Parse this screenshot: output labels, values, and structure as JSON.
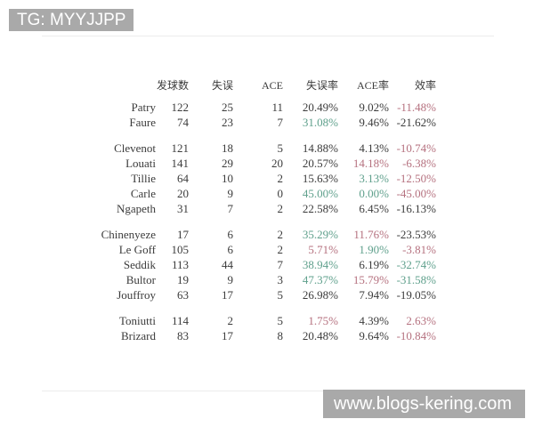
{
  "watermarks": {
    "top_left": "TG: MYYJJPP",
    "bottom_right": "www.blogs-kering.com"
  },
  "colors": {
    "green": "#5fa08c",
    "red": "#b5717f",
    "text": "#3b3b3b",
    "badge_bg": "#a9a9a9",
    "badge_text": "#ffffff",
    "card_border": "#ececec"
  },
  "table": {
    "columns": [
      "发球数",
      "失误",
      "ACE",
      "失误率",
      "ACE率",
      "效率"
    ],
    "groups": [
      {
        "rows": [
          {
            "name": "Patry",
            "values": [
              "122",
              "25",
              "11",
              "20.49%",
              "9.02%",
              "-11.48%"
            ],
            "value_colors": [
              "default",
              "default",
              "red"
            ]
          },
          {
            "name": "Faure",
            "values": [
              "74",
              "23",
              "7",
              "31.08%",
              "9.46%",
              "-21.62%"
            ],
            "value_colors": [
              "green",
              "default",
              "default"
            ]
          }
        ]
      },
      {
        "rows": [
          {
            "name": "Clevenot",
            "values": [
              "121",
              "18",
              "5",
              "14.88%",
              "4.13%",
              "-10.74%"
            ],
            "value_colors": [
              "default",
              "default",
              "red"
            ]
          },
          {
            "name": "Louati",
            "values": [
              "141",
              "29",
              "20",
              "20.57%",
              "14.18%",
              "-6.38%"
            ],
            "value_colors": [
              "default",
              "red",
              "red"
            ]
          },
          {
            "name": "Tillie",
            "values": [
              "64",
              "10",
              "2",
              "15.63%",
              "3.13%",
              "-12.50%"
            ],
            "value_colors": [
              "default",
              "green",
              "red"
            ]
          },
          {
            "name": "Carle",
            "values": [
              "20",
              "9",
              "0",
              "45.00%",
              "0.00%",
              "-45.00%"
            ],
            "value_colors": [
              "green",
              "green",
              "red"
            ]
          },
          {
            "name": "Ngapeth",
            "values": [
              "31",
              "7",
              "2",
              "22.58%",
              "6.45%",
              "-16.13%"
            ],
            "value_colors": [
              "default",
              "default",
              "default"
            ]
          }
        ]
      },
      {
        "rows": [
          {
            "name": "Chinenyeze",
            "values": [
              "17",
              "6",
              "2",
              "35.29%",
              "11.76%",
              "-23.53%"
            ],
            "value_colors": [
              "green",
              "red",
              "default"
            ]
          },
          {
            "name": "Le Goff",
            "values": [
              "105",
              "6",
              "2",
              "5.71%",
              "1.90%",
              "-3.81%"
            ],
            "value_colors": [
              "red",
              "green",
              "red"
            ]
          },
          {
            "name": "Seddik",
            "values": [
              "113",
              "44",
              "7",
              "38.94%",
              "6.19%",
              "-32.74%"
            ],
            "value_colors": [
              "green",
              "default",
              "green"
            ]
          },
          {
            "name": "Bultor",
            "values": [
              "19",
              "9",
              "3",
              "47.37%",
              "15.79%",
              "-31.58%"
            ],
            "value_colors": [
              "green",
              "red",
              "green"
            ]
          },
          {
            "name": "Jouffroy",
            "values": [
              "63",
              "17",
              "5",
              "26.98%",
              "7.94%",
              "-19.05%"
            ],
            "value_colors": [
              "default",
              "default",
              "default"
            ]
          }
        ]
      },
      {
        "rows": [
          {
            "name": "Toniutti",
            "values": [
              "114",
              "2",
              "5",
              "1.75%",
              "4.39%",
              "2.63%"
            ],
            "value_colors": [
              "red",
              "default",
              "red"
            ]
          },
          {
            "name": "Brizard",
            "values": [
              "83",
              "17",
              "8",
              "20.48%",
              "9.64%",
              "-10.84%"
            ],
            "value_colors": [
              "default",
              "default",
              "red"
            ]
          }
        ]
      }
    ]
  }
}
